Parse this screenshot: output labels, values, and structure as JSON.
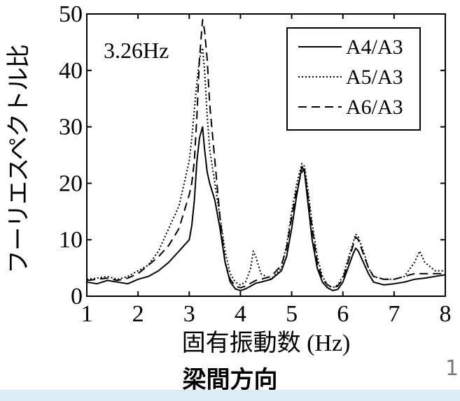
{
  "chart_data": {
    "type": "line",
    "xlabel": "固有振動数 (Hz)",
    "ylabel": "フーリエスペクトル比",
    "xlim": [
      1,
      8
    ],
    "ylim": [
      0,
      50
    ],
    "xticks": [
      "1",
      "2",
      "3",
      "4",
      "5",
      "6",
      "7",
      "8"
    ],
    "yticks": [
      "0",
      "10",
      "20",
      "30",
      "40",
      "50"
    ],
    "annotation": "3.26Hz",
    "legend_position": "top-right",
    "grid": false,
    "series": [
      {
        "name": "A4/A3",
        "style": "solid",
        "x": [
          1.0,
          1.2,
          1.4,
          1.6,
          1.8,
          2.0,
          2.2,
          2.4,
          2.6,
          2.8,
          2.9,
          3.0,
          3.05,
          3.1,
          3.15,
          3.2,
          3.26,
          3.3,
          3.35,
          3.4,
          3.5,
          3.6,
          3.7,
          3.8,
          3.9,
          4.0,
          4.1,
          4.2,
          4.3,
          4.4,
          4.6,
          4.8,
          4.9,
          5.0,
          5.1,
          5.2,
          5.25,
          5.3,
          5.4,
          5.5,
          5.6,
          5.7,
          5.8,
          5.9,
          6.0,
          6.1,
          6.2,
          6.25,
          6.3,
          6.4,
          6.5,
          6.6,
          6.8,
          7.0,
          7.2,
          7.4,
          7.6,
          7.8,
          8.0
        ],
        "values": [
          2.5,
          2.2,
          2.8,
          2.5,
          2.2,
          3.0,
          3.5,
          4.5,
          6.0,
          8.0,
          9.0,
          10.0,
          12.5,
          17.0,
          24.0,
          28.0,
          30.0,
          26.0,
          22.0,
          20.0,
          17.0,
          12.0,
          6.0,
          2.5,
          1.3,
          1.0,
          1.3,
          1.8,
          2.3,
          2.5,
          3.0,
          4.5,
          7.0,
          12.0,
          18.0,
          23.0,
          22.0,
          18.0,
          10.0,
          5.0,
          2.5,
          1.5,
          1.0,
          1.2,
          2.5,
          5.0,
          7.5,
          8.5,
          8.0,
          6.0,
          4.0,
          2.5,
          2.0,
          2.2,
          2.5,
          3.0,
          3.2,
          3.5,
          3.8
        ]
      },
      {
        "name": "A5/A3",
        "style": "dotted",
        "x": [
          1.0,
          1.2,
          1.4,
          1.6,
          1.8,
          2.0,
          2.2,
          2.4,
          2.6,
          2.8,
          2.9,
          3.0,
          3.05,
          3.1,
          3.15,
          3.2,
          3.26,
          3.3,
          3.35,
          3.4,
          3.5,
          3.6,
          3.7,
          3.8,
          3.9,
          4.0,
          4.1,
          4.2,
          4.25,
          4.3,
          4.4,
          4.6,
          4.8,
          4.9,
          5.0,
          5.1,
          5.2,
          5.25,
          5.3,
          5.4,
          5.5,
          5.6,
          5.7,
          5.8,
          5.9,
          6.0,
          6.1,
          6.2,
          6.25,
          6.3,
          6.4,
          6.5,
          6.6,
          6.8,
          7.0,
          7.2,
          7.4,
          7.5,
          7.6,
          7.8,
          8.0
        ],
        "values": [
          3.0,
          3.2,
          3.5,
          3.0,
          3.5,
          4.5,
          5.5,
          8.0,
          12.0,
          16.0,
          20.0,
          24.0,
          28.0,
          33.0,
          38.0,
          42.0,
          44.0,
          40.0,
          32.0,
          26.0,
          20.0,
          14.0,
          8.0,
          4.0,
          2.5,
          2.0,
          2.5,
          5.0,
          8.0,
          7.0,
          4.0,
          3.0,
          5.0,
          9.0,
          15.0,
          20.0,
          23.5,
          23.0,
          20.0,
          13.0,
          7.0,
          3.5,
          2.0,
          1.5,
          2.0,
          3.5,
          6.5,
          9.5,
          11.0,
          10.5,
          8.0,
          5.0,
          3.5,
          3.0,
          3.0,
          3.5,
          6.0,
          8.0,
          6.0,
          4.5,
          4.5
        ]
      },
      {
        "name": "A6/A3",
        "style": "dashed",
        "x": [
          1.0,
          1.2,
          1.4,
          1.6,
          1.8,
          2.0,
          2.2,
          2.4,
          2.6,
          2.8,
          2.9,
          3.0,
          3.05,
          3.1,
          3.15,
          3.2,
          3.26,
          3.3,
          3.35,
          3.4,
          3.5,
          3.6,
          3.7,
          3.8,
          3.9,
          4.0,
          4.1,
          4.2,
          4.3,
          4.4,
          4.6,
          4.8,
          4.9,
          5.0,
          5.1,
          5.2,
          5.25,
          5.3,
          5.4,
          5.5,
          5.6,
          5.7,
          5.8,
          5.9,
          6.0,
          6.1,
          6.2,
          6.25,
          6.3,
          6.4,
          6.5,
          6.6,
          6.8,
          7.0,
          7.2,
          7.4,
          7.6,
          7.8,
          8.0
        ],
        "values": [
          2.8,
          3.0,
          3.2,
          2.8,
          3.2,
          4.0,
          5.5,
          7.0,
          9.0,
          12.0,
          15.0,
          18.0,
          20.0,
          24.0,
          32.0,
          42.0,
          49.0,
          47.0,
          42.0,
          34.0,
          24.0,
          14.0,
          6.0,
          3.0,
          1.8,
          1.5,
          1.8,
          2.3,
          2.8,
          3.0,
          3.5,
          5.5,
          8.5,
          14.0,
          19.0,
          22.0,
          22.5,
          19.0,
          12.0,
          6.0,
          3.0,
          2.0,
          1.5,
          1.8,
          3.0,
          6.0,
          9.0,
          10.5,
          10.0,
          7.5,
          5.0,
          3.5,
          3.0,
          3.0,
          3.5,
          4.0,
          4.0,
          4.0,
          4.0
        ]
      }
    ]
  },
  "caption": "梁間方向",
  "page_number": "1"
}
